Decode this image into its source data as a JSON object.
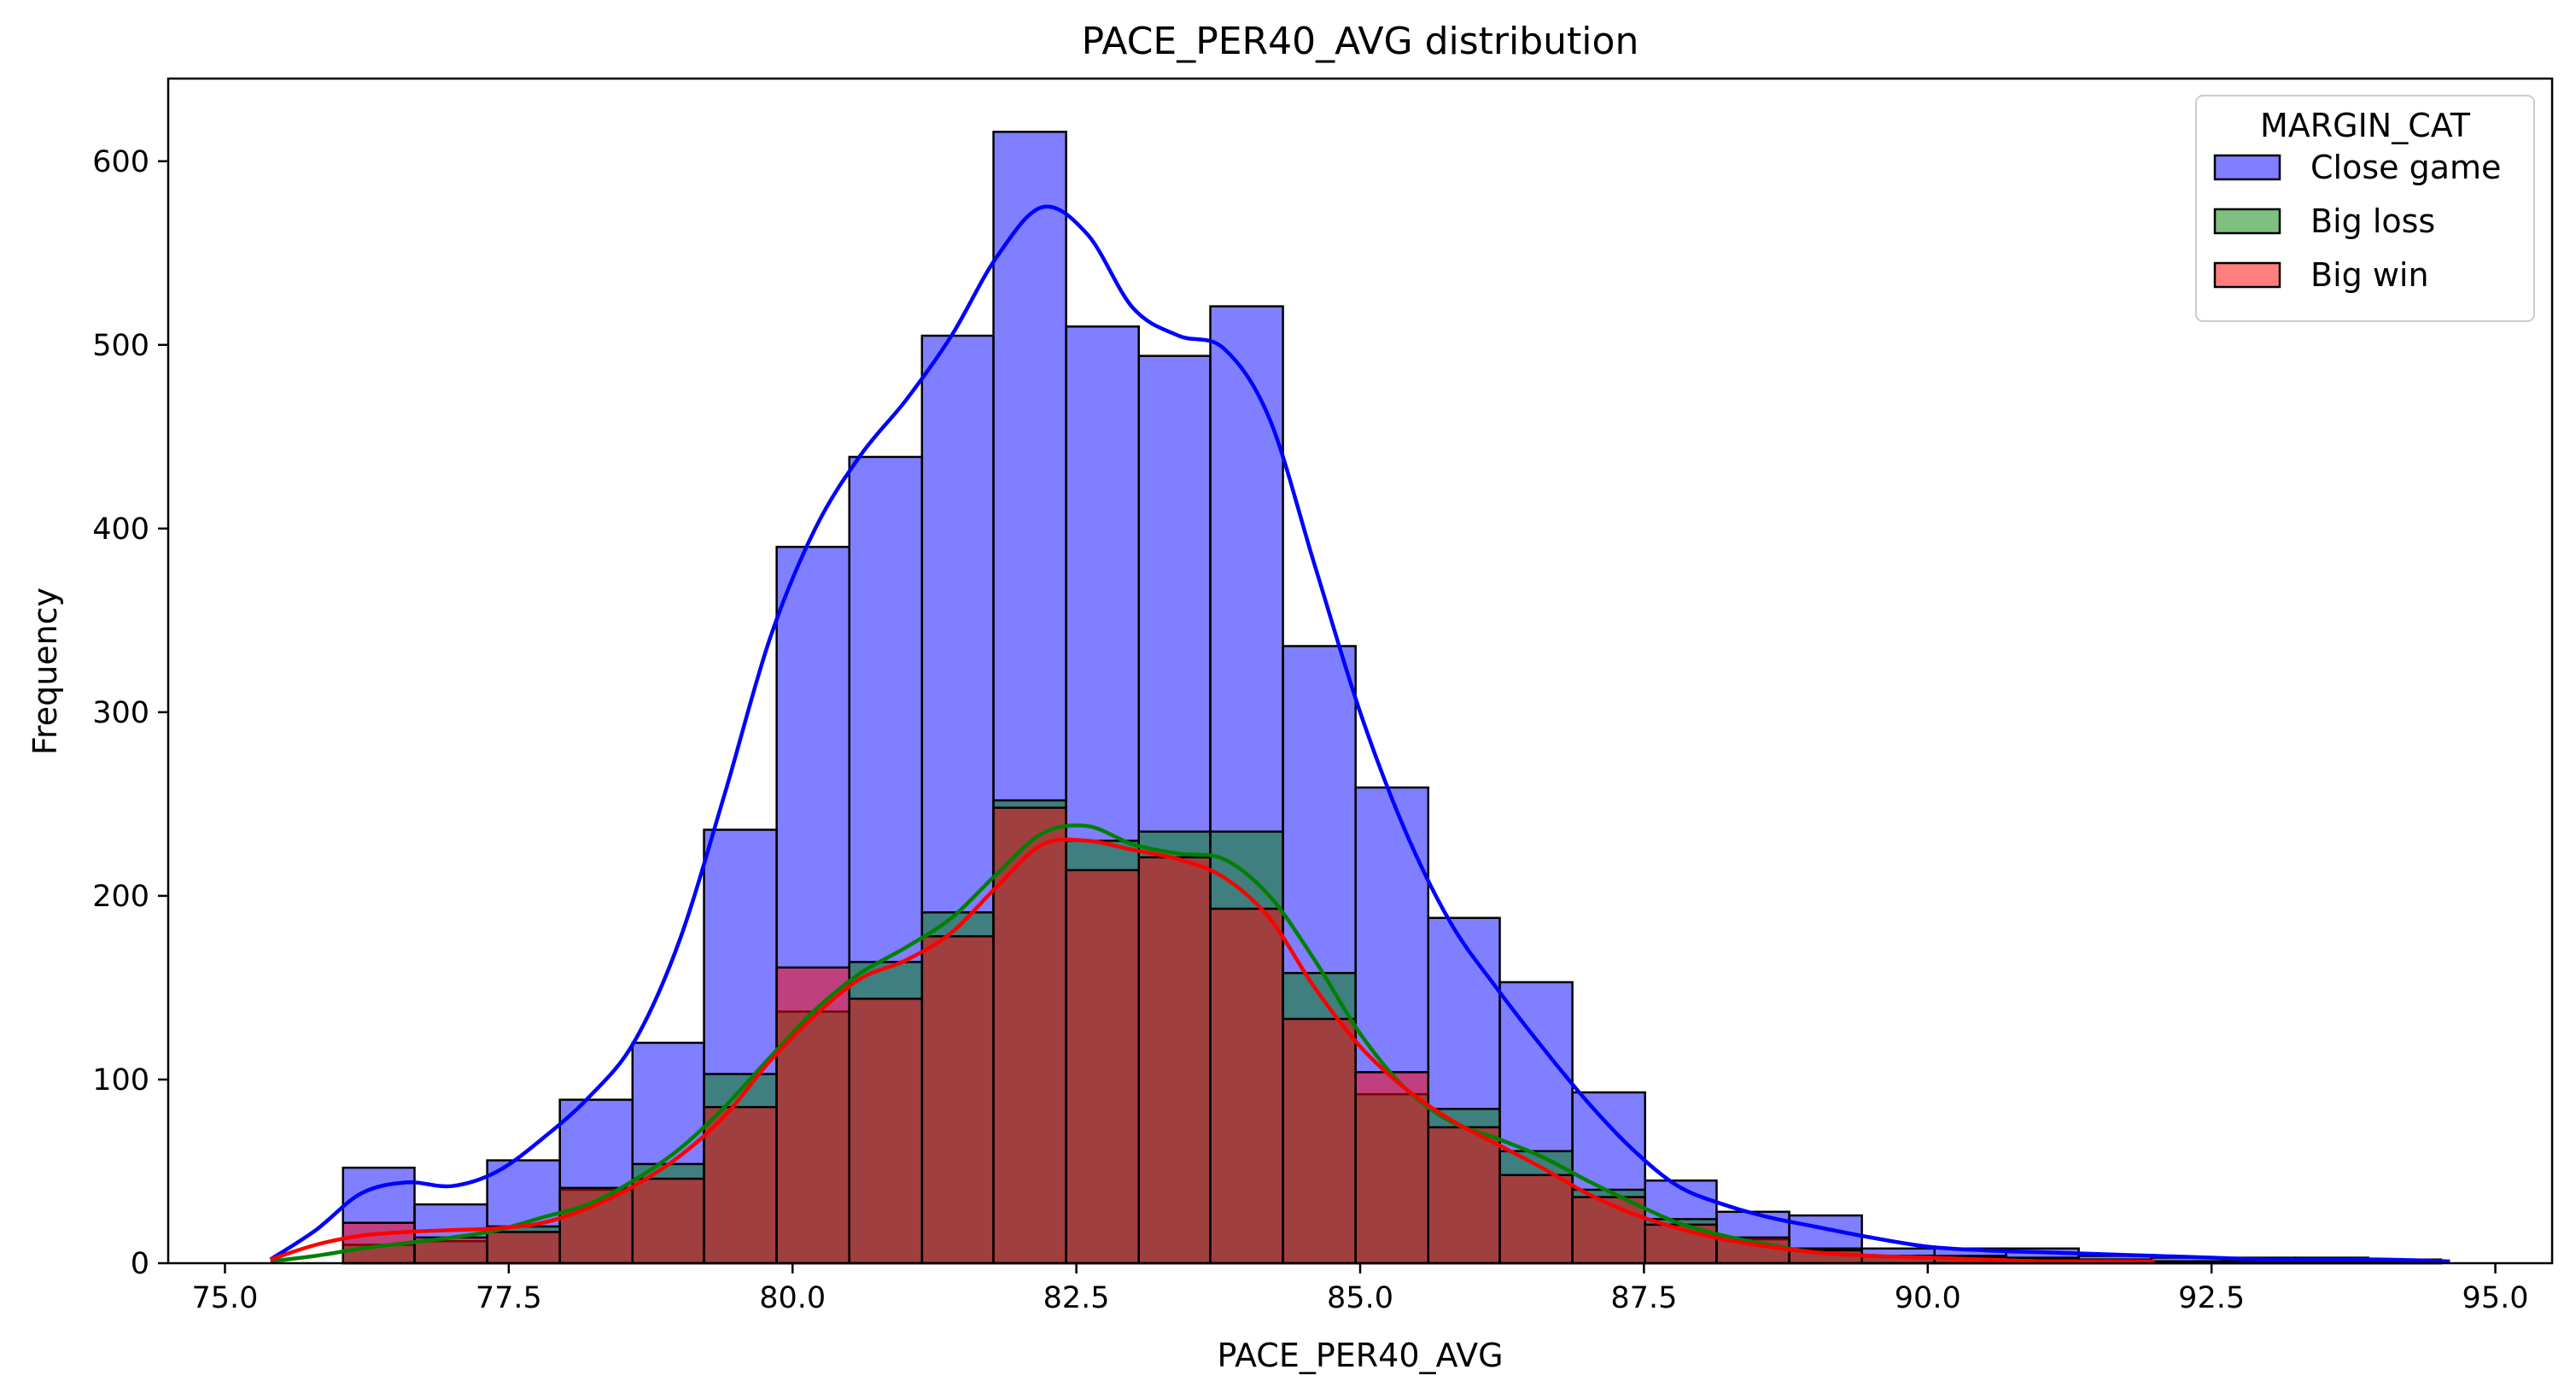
{
  "chart_data": {
    "type": "histogram",
    "title": "PACE_PER40_AVG distribution",
    "xlabel": "PACE_PER40_AVG",
    "ylabel": "Frequency",
    "xlim": [
      74.5,
      95.5
    ],
    "ylim": [
      0,
      645
    ],
    "xticks": [
      75.0,
      77.5,
      80.0,
      82.5,
      85.0,
      87.5,
      90.0,
      92.5,
      95.0
    ],
    "xtick_labels": [
      "75.0",
      "77.5",
      "80.0",
      "82.5",
      "85.0",
      "87.5",
      "90.0",
      "92.5",
      "95.0"
    ],
    "yticks": [
      0,
      100,
      200,
      300,
      400,
      500,
      600
    ],
    "ytick_labels": [
      "0",
      "100",
      "200",
      "300",
      "400",
      "500",
      "600"
    ],
    "bin_edges": [
      75.4,
      76.04,
      76.67,
      77.31,
      77.95,
      78.59,
      79.22,
      79.86,
      80.5,
      81.14,
      81.77,
      82.41,
      83.05,
      83.68,
      84.32,
      84.96,
      85.6,
      86.23,
      86.87,
      87.51,
      88.14,
      88.78,
      89.42,
      90.06,
      90.69,
      91.33,
      91.97,
      92.61,
      93.24,
      93.88,
      94.52
    ],
    "legend_title": "MARGIN_CAT",
    "legend_position": "top-right",
    "series": [
      {
        "name": "Close game",
        "color": "#0000ff",
        "values": [
          0,
          52,
          32,
          56,
          89,
          120,
          236,
          390,
          439,
          505,
          616,
          510,
          494,
          521,
          336,
          259,
          188,
          153,
          93,
          45,
          28,
          26,
          8,
          8,
          8,
          4,
          3,
          3,
          3,
          2
        ],
        "kde_x": [
          75.4,
          75.8,
          76.2,
          76.6,
          77.0,
          77.4,
          77.8,
          78.2,
          78.6,
          79.0,
          79.4,
          79.8,
          80.2,
          80.6,
          81.0,
          81.4,
          81.8,
          82.2,
          82.6,
          83.0,
          83.4,
          83.8,
          84.2,
          84.6,
          85.0,
          85.4,
          85.8,
          86.2,
          86.6,
          87.0,
          87.4,
          87.8,
          88.2,
          88.6,
          89.0,
          89.5,
          90.0,
          90.5,
          91.0,
          91.5,
          92.0,
          92.5,
          93.0,
          93.5,
          94.0,
          94.6
        ],
        "kde_y": [
          2,
          18,
          38,
          44,
          42,
          50,
          68,
          90,
          120,
          175,
          255,
          340,
          400,
          440,
          470,
          505,
          548,
          575,
          560,
          520,
          505,
          498,
          460,
          380,
          300,
          235,
          185,
          150,
          118,
          88,
          62,
          42,
          32,
          25,
          20,
          14,
          9,
          7,
          6,
          5,
          4,
          3,
          2,
          2,
          2,
          1
        ]
      },
      {
        "name": "Big loss",
        "color": "#008000",
        "values": [
          0,
          10,
          12,
          20,
          40,
          54,
          103,
          137,
          164,
          191,
          252,
          230,
          235,
          235,
          158,
          92,
          84,
          61,
          40,
          24,
          13,
          8,
          4,
          4,
          3,
          2,
          1,
          1,
          1,
          1
        ],
        "kde_x": [
          75.4,
          75.8,
          76.2,
          76.6,
          77.0,
          77.4,
          77.8,
          78.2,
          78.6,
          79.0,
          79.4,
          79.8,
          80.2,
          80.6,
          81.0,
          81.4,
          81.8,
          82.2,
          82.6,
          83.0,
          83.4,
          83.8,
          84.2,
          84.6,
          85.0,
          85.4,
          85.8,
          86.2,
          86.6,
          87.0,
          87.4,
          87.8,
          88.2,
          88.6,
          89.0,
          89.5,
          90.0,
          90.5,
          91.0,
          91.5,
          92.0
        ],
        "kde_y": [
          1,
          4,
          8,
          11,
          14,
          18,
          25,
          32,
          45,
          62,
          85,
          112,
          138,
          158,
          172,
          188,
          212,
          234,
          238,
          228,
          223,
          220,
          200,
          165,
          125,
          95,
          77,
          68,
          58,
          45,
          33,
          22,
          15,
          10,
          6,
          4,
          3,
          2,
          1,
          1,
          1
        ]
      },
      {
        "name": "Big win",
        "color": "#ff0000",
        "values": [
          0,
          22,
          14,
          17,
          41,
          46,
          85,
          161,
          144,
          178,
          248,
          214,
          221,
          193,
          133,
          104,
          74,
          48,
          36,
          21,
          14,
          7,
          4,
          3,
          2,
          2,
          1,
          1,
          1,
          1
        ],
        "kde_x": [
          75.4,
          75.8,
          76.2,
          76.6,
          77.0,
          77.4,
          77.8,
          78.2,
          78.6,
          79.0,
          79.4,
          79.8,
          80.2,
          80.6,
          81.0,
          81.4,
          81.8,
          82.2,
          82.6,
          83.0,
          83.4,
          83.8,
          84.2,
          84.6,
          85.0,
          85.4,
          85.8,
          86.2,
          86.6,
          87.0,
          87.4,
          87.8,
          88.2,
          88.6,
          89.0,
          89.5,
          90.0,
          90.5,
          91.0,
          91.5,
          92.0
        ],
        "kde_y": [
          2,
          10,
          15,
          17,
          18,
          19,
          22,
          30,
          42,
          58,
          80,
          110,
          135,
          155,
          165,
          180,
          205,
          228,
          230,
          225,
          220,
          210,
          188,
          150,
          118,
          95,
          78,
          65,
          52,
          38,
          27,
          19,
          13,
          9,
          6,
          4,
          3,
          2,
          1,
          1,
          1
        ]
      }
    ]
  }
}
